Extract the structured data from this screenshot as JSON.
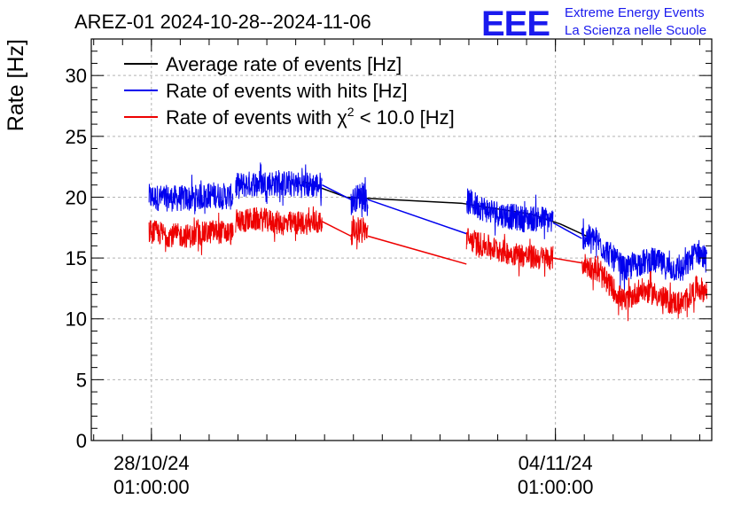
{
  "chart_data": {
    "type": "line",
    "title": "AREZ-01 2024-10-28--2024-11-06",
    "ylabel": "Rate [Hz]",
    "xlabel": "",
    "ylim": [
      0,
      33
    ],
    "y_ticks": [
      0,
      5,
      10,
      15,
      20,
      25,
      30
    ],
    "x_axis": {
      "type": "datetime",
      "range": [
        "2024-10-27 00:00:00",
        "2024-11-06 18:00:00"
      ],
      "ticks": [
        {
          "time": "2024-10-28 01:00:00",
          "label_date": "28/10/24",
          "label_time": "01:00:00"
        },
        {
          "time": "2024-11-04 01:00:00",
          "label_date": "04/11/24",
          "label_time": "01:00:00"
        }
      ]
    },
    "grid": true,
    "legend": {
      "placement": "top-left",
      "entries": [
        {
          "series": "average",
          "label": "Average rate of events [Hz]"
        },
        {
          "series": "hits",
          "label": "Rate of events with hits [Hz]"
        },
        {
          "series": "chi2",
          "label_prefix": "Rate of events with ",
          "label_symbol": "χ",
          "label_sup": "2",
          "label_suffix": " < 10.0 [Hz]"
        }
      ]
    },
    "series": [
      {
        "name": "Average rate of events [Hz]",
        "key": "average",
        "color": "#000000",
        "noise": 0,
        "points": [
          [
            "2024-10-30 16:00",
            21.3
          ],
          [
            "2024-10-31 10:00",
            20.0
          ],
          [
            "2024-11-02 10:00",
            19.5
          ],
          [
            "2024-11-03 15:00",
            18.6
          ],
          [
            "2024-11-04 03:00",
            17.8
          ],
          [
            "2024-11-04 14:00",
            16.8
          ]
        ]
      },
      {
        "name": "Rate of events with hits [Hz]",
        "key": "hits",
        "color": "#0000ee",
        "noise": 1.1,
        "segments": [
          [
            [
              "2024-10-28 00:00",
              20.0
            ],
            [
              "2024-10-28 08:00",
              19.9
            ],
            [
              "2024-10-28 18:00",
              19.9
            ],
            [
              "2024-10-29 03:00",
              20.2
            ],
            [
              "2024-10-29 11:00",
              20.0
            ]
          ],
          [
            [
              "2024-10-29 12:00",
              20.9
            ],
            [
              "2024-10-29 22:00",
              21.2
            ],
            [
              "2024-10-30 08:00",
              21.1
            ],
            [
              "2024-10-30 18:00",
              21.0
            ],
            [
              "2024-10-31 00:00",
              21.0
            ]
          ],
          [
            [
              "2024-10-31 12:00",
              19.6
            ],
            [
              "2024-10-31 16:00",
              20.2
            ],
            [
              "2024-10-31 19:00",
              19.7
            ]
          ],
          [
            [
              "2024-11-02 12:00",
              19.7
            ],
            [
              "2024-11-02 20:00",
              19.0
            ],
            [
              "2024-11-03 04:00",
              18.5
            ],
            [
              "2024-11-03 12:00",
              18.2
            ],
            [
              "2024-11-03 18:00",
              18.3
            ],
            [
              "2024-11-04 00:00",
              18.0
            ]
          ],
          [
            [
              "2024-11-04 12:00",
              16.8
            ],
            [
              "2024-11-04 18:00",
              16.5
            ],
            [
              "2024-11-05 00:00",
              15.2
            ],
            [
              "2024-11-05 06:00",
              14.0
            ],
            [
              "2024-11-05 12:00",
              14.6
            ],
            [
              "2024-11-05 18:00",
              14.8
            ],
            [
              "2024-11-06 00:00",
              14.2
            ],
            [
              "2024-11-06 06:00",
              14.0
            ],
            [
              "2024-11-06 12:00",
              15.6
            ],
            [
              "2024-11-06 16:00",
              14.8
            ]
          ]
        ]
      },
      {
        "name": "Rate of events with χ2 < 10.0 [Hz]",
        "key": "chi2",
        "color": "#ee0000",
        "noise": 1.0,
        "segments": [
          [
            [
              "2024-10-28 00:00",
              17.2
            ],
            [
              "2024-10-28 08:00",
              16.9
            ],
            [
              "2024-10-28 18:00",
              16.8
            ],
            [
              "2024-10-29 03:00",
              17.2
            ],
            [
              "2024-10-29 11:00",
              17.0
            ]
          ],
          [
            [
              "2024-10-29 12:00",
              18.0
            ],
            [
              "2024-10-29 22:00",
              18.2
            ],
            [
              "2024-10-30 08:00",
              17.8
            ],
            [
              "2024-10-30 18:00",
              17.9
            ],
            [
              "2024-10-31 00:00",
              17.9
            ]
          ],
          [
            [
              "2024-10-31 12:00",
              17.0
            ],
            [
              "2024-10-31 16:00",
              17.6
            ],
            [
              "2024-10-31 19:00",
              17.1
            ]
          ],
          [
            [
              "2024-11-02 12:00",
              16.6
            ],
            [
              "2024-11-02 20:00",
              16.0
            ],
            [
              "2024-11-03 04:00",
              15.5
            ],
            [
              "2024-11-03 12:00",
              15.2
            ],
            [
              "2024-11-03 18:00",
              15.0
            ],
            [
              "2024-11-04 00:00",
              15.0
            ]
          ],
          [
            [
              "2024-11-04 12:00",
              14.6
            ],
            [
              "2024-11-04 18:00",
              14.0
            ],
            [
              "2024-11-05 00:00",
              12.7
            ],
            [
              "2024-11-05 06:00",
              11.3
            ],
            [
              "2024-11-05 12:00",
              12.4
            ],
            [
              "2024-11-05 18:00",
              12.1
            ],
            [
              "2024-11-06 00:00",
              11.4
            ],
            [
              "2024-11-06 06:00",
              11.3
            ],
            [
              "2024-11-06 12:00",
              12.6
            ],
            [
              "2024-11-06 16:00",
              12.2
            ]
          ]
        ]
      }
    ],
    "connectors": [
      {
        "series": "hits",
        "points": [
          [
            "2024-10-31 00:00",
            21.0
          ],
          [
            "2024-10-31 12:00",
            19.8
          ]
        ]
      },
      {
        "series": "hits",
        "points": [
          [
            "2024-10-31 19:00",
            19.8
          ],
          [
            "2024-11-02 12:00",
            17.0
          ]
        ]
      },
      {
        "series": "hits",
        "points": [
          [
            "2024-11-04 00:00",
            17.9
          ],
          [
            "2024-11-04 12:00",
            16.6
          ]
        ]
      },
      {
        "series": "chi2",
        "points": [
          [
            "2024-10-31 00:00",
            18.0
          ],
          [
            "2024-10-31 12:00",
            16.8
          ]
        ]
      },
      {
        "series": "chi2",
        "points": [
          [
            "2024-10-31 19:00",
            16.8
          ],
          [
            "2024-11-02 12:00",
            14.5
          ]
        ]
      },
      {
        "series": "chi2",
        "points": [
          [
            "2024-11-04 00:00",
            15.0
          ],
          [
            "2024-11-04 12:00",
            14.6
          ]
        ]
      }
    ]
  },
  "branding": {
    "logo_text": "EEE",
    "logo_color": "#1a1aee",
    "line1": "Extreme Energy Events",
    "line2": "La Scienza nelle Scuole"
  }
}
